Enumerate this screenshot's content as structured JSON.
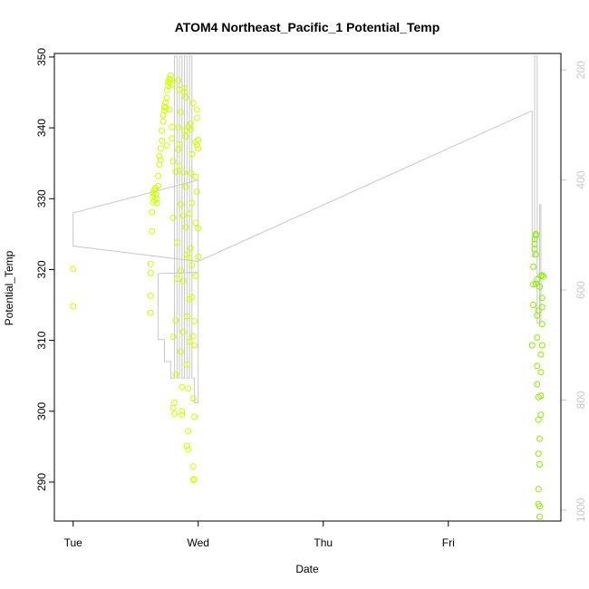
{
  "chart_data": {
    "type": "scatter",
    "title": "ATOM4 Northeast_Pacific_1 Potential_Temp",
    "xlabel": "Date",
    "ylabel": "Potential_Temp",
    "x_ticks": [
      "Tue",
      "Wed",
      "Thu",
      "Fri"
    ],
    "x_tick_values": [
      0,
      1,
      2,
      3
    ],
    "xlim": [
      -0.15,
      3.9
    ],
    "ylim": [
      284.5,
      350.5
    ],
    "y_ticks": [
      290,
      300,
      310,
      320,
      330,
      340,
      350
    ],
    "y2_ticks": [
      200,
      400,
      600,
      800,
      1000
    ],
    "y2lim": [
      1020,
      170
    ],
    "grid": false,
    "legend": "none",
    "colors": {
      "points_early": "#ccff00",
      "points_late": "#88ee00",
      "altitude_line": "#c8c8c8",
      "axis": "#000000",
      "right_axis": "#c8c8c8"
    },
    "series": [
      {
        "points": [
          [
            0.0,
            320.1
          ],
          [
            0.0,
            314.8
          ],
          [
            0.62,
            313.9
          ],
          [
            0.62,
            316.3
          ],
          [
            0.62,
            319.5
          ],
          [
            0.62,
            320.8
          ],
          [
            0.63,
            325.4
          ],
          [
            0.63,
            328.1
          ],
          [
            0.64,
            329.5
          ],
          [
            0.64,
            330.3
          ],
          [
            0.64,
            330.8
          ],
          [
            0.65,
            331.2
          ],
          [
            0.65,
            329.8
          ],
          [
            0.66,
            330.6
          ],
          [
            0.66,
            331.5
          ],
          [
            0.67,
            330.0
          ],
          [
            0.67,
            329.4
          ],
          [
            0.68,
            331.8
          ],
          [
            0.68,
            333.2
          ],
          [
            0.69,
            334.8
          ],
          [
            0.69,
            336.0
          ],
          [
            0.7,
            335.5
          ],
          [
            0.7,
            337.1
          ],
          [
            0.71,
            338.2
          ],
          [
            0.71,
            339.6
          ],
          [
            0.72,
            340.9
          ],
          [
            0.72,
            341.8
          ],
          [
            0.73,
            342.4
          ],
          [
            0.73,
            343.0
          ],
          [
            0.74,
            343.6
          ],
          [
            0.74,
            342.8
          ],
          [
            0.75,
            344.2
          ],
          [
            0.75,
            345.3
          ],
          [
            0.76,
            345.9
          ],
          [
            0.76,
            346.5
          ],
          [
            0.77,
            346.9
          ],
          [
            0.77,
            346.3
          ],
          [
            0.78,
            347.4
          ],
          [
            0.78,
            346.8
          ],
          [
            0.79,
            346.1
          ],
          [
            0.79,
            338.5
          ],
          [
            0.8,
            335.3
          ],
          [
            0.8,
            327.3
          ],
          [
            0.8,
            310.5
          ],
          [
            0.8,
            300.5
          ],
          [
            0.81,
            299.6
          ],
          [
            0.81,
            301.2
          ],
          [
            0.82,
            305.2
          ],
          [
            0.82,
            312.8
          ],
          [
            0.83,
            318.7
          ],
          [
            0.83,
            323.8
          ],
          [
            0.84,
            336.9
          ],
          [
            0.84,
            340.1
          ],
          [
            0.84,
            346.7
          ],
          [
            0.85,
            345.4
          ],
          [
            0.85,
            337.7
          ],
          [
            0.86,
            329.2
          ],
          [
            0.86,
            319.8
          ],
          [
            0.86,
            308.4
          ],
          [
            0.87,
            300.0
          ],
          [
            0.87,
            299.5
          ],
          [
            0.87,
            303.4
          ],
          [
            0.88,
            311.2
          ],
          [
            0.88,
            318.4
          ],
          [
            0.88,
            327.6
          ],
          [
            0.88,
            333.7
          ],
          [
            0.89,
            339.6
          ],
          [
            0.89,
            345.1
          ],
          [
            0.89,
            345.6
          ],
          [
            0.9,
            344.3
          ],
          [
            0.9,
            338.8
          ],
          [
            0.9,
            331.7
          ],
          [
            0.91,
            322.1
          ],
          [
            0.91,
            313.4
          ],
          [
            0.91,
            306.6
          ],
          [
            0.91,
            295.1
          ],
          [
            0.92,
            294.6
          ],
          [
            0.92,
            297.2
          ],
          [
            0.92,
            303.2
          ],
          [
            0.93,
            309.8
          ],
          [
            0.93,
            315.8
          ],
          [
            0.93,
            321.7
          ],
          [
            0.93,
            327.9
          ],
          [
            0.94,
            333.6
          ],
          [
            0.94,
            339.8
          ],
          [
            0.94,
            340.6
          ],
          [
            0.95,
            336.3
          ],
          [
            0.95,
            329.4
          ],
          [
            0.95,
            320.6
          ],
          [
            0.96,
            310.6
          ],
          [
            0.96,
            301.8
          ],
          [
            0.96,
            292.2
          ],
          [
            0.96,
            290.3
          ],
          [
            0.97,
            290.4
          ],
          [
            0.97,
            299.2
          ],
          [
            0.97,
            309.3
          ],
          [
            0.97,
            312.7
          ],
          [
            0.98,
            319.1
          ],
          [
            0.98,
            326.6
          ],
          [
            0.98,
            333.1
          ],
          [
            0.98,
            338.0
          ],
          [
            0.99,
            342.6
          ],
          [
            0.99,
            341.4
          ],
          [
            0.99,
            337.6
          ],
          [
            0.99,
            331.0
          ],
          [
            1.0,
            325.8
          ],
          [
            1.0,
            321.8
          ],
          [
            1.0,
            338.3
          ],
          [
            1.0,
            337.1
          ],
          [
            0.75,
            337.5
          ],
          [
            0.77,
            342.6
          ],
          [
            0.79,
            340.1
          ],
          [
            0.85,
            334.6
          ],
          [
            0.9,
            326.0
          ],
          [
            0.94,
            323.0
          ],
          [
            0.95,
            316.1
          ],
          [
            0.82,
            333.8
          ],
          [
            0.86,
            342.2
          ],
          [
            0.92,
            340.1
          ],
          [
            0.96,
            343.5
          ]
        ]
      },
      {
        "points": [
          [
            3.67,
            309.3
          ],
          [
            3.68,
            315.0
          ],
          [
            3.68,
            317.9
          ],
          [
            3.68,
            320.4
          ],
          [
            3.69,
            322.9
          ],
          [
            3.69,
            324.3
          ],
          [
            3.69,
            323.6
          ],
          [
            3.7,
            324.8
          ],
          [
            3.7,
            325.0
          ],
          [
            3.7,
            322.1
          ],
          [
            3.71,
            318.6
          ],
          [
            3.71,
            313.5
          ],
          [
            3.71,
            310.4
          ],
          [
            3.71,
            306.4
          ],
          [
            3.72,
            302.0
          ],
          [
            3.72,
            298.8
          ],
          [
            3.72,
            294.0
          ],
          [
            3.72,
            289.0
          ],
          [
            3.72,
            286.9
          ],
          [
            3.73,
            285.1
          ],
          [
            3.73,
            286.6
          ],
          [
            3.73,
            292.5
          ],
          [
            3.73,
            296.1
          ],
          [
            3.74,
            299.5
          ],
          [
            3.74,
            302.2
          ],
          [
            3.74,
            305.5
          ],
          [
            3.74,
            308.0
          ],
          [
            3.75,
            309.3
          ],
          [
            3.75,
            312.3
          ],
          [
            3.75,
            314.7
          ],
          [
            3.75,
            316.0
          ],
          [
            3.75,
            319.2
          ],
          [
            3.76,
            319.0
          ],
          [
            3.74,
            319.1
          ],
          [
            3.73,
            317.6
          ],
          [
            3.72,
            314.2
          ],
          [
            3.71,
            303.8
          ],
          [
            3.7,
            318.0
          ]
        ]
      }
    ],
    "secondary_line": [
      [
        0.0,
        460
      ],
      [
        0.0,
        520
      ],
      [
        1.0,
        548
      ],
      [
        1.0,
        568
      ],
      [
        0.68,
        570
      ],
      [
        0.68,
        690
      ],
      [
        0.73,
        690
      ],
      [
        0.73,
        730
      ],
      [
        0.78,
        730
      ],
      [
        0.78,
        760
      ],
      [
        0.81,
        760
      ],
      [
        0.81,
        175
      ],
      [
        0.83,
        175
      ],
      [
        0.83,
        760
      ],
      [
        0.85,
        760
      ],
      [
        0.85,
        175
      ],
      [
        0.87,
        175
      ],
      [
        0.87,
        760
      ],
      [
        0.89,
        760
      ],
      [
        0.89,
        175
      ],
      [
        0.91,
        175
      ],
      [
        0.91,
        760
      ],
      [
        0.93,
        760
      ],
      [
        0.93,
        175
      ],
      [
        0.95,
        175
      ],
      [
        0.95,
        760
      ],
      [
        0.97,
        760
      ],
      [
        0.97,
        805
      ],
      [
        1.0,
        805
      ],
      [
        1.0,
        568
      ],
      [
        1.0,
        400
      ],
      [
        0.0,
        460
      ],
      [
        0.0,
        520
      ],
      [
        1.0,
        548
      ],
      [
        3.66,
        275
      ],
      [
        3.67,
        275
      ],
      [
        3.67,
        540
      ],
      [
        3.69,
        540
      ],
      [
        3.69,
        175
      ],
      [
        3.71,
        175
      ],
      [
        3.71,
        660
      ],
      [
        3.73,
        660
      ],
      [
        3.73,
        445
      ],
      [
        3.74,
        445
      ],
      [
        3.74,
        660
      ]
    ]
  }
}
